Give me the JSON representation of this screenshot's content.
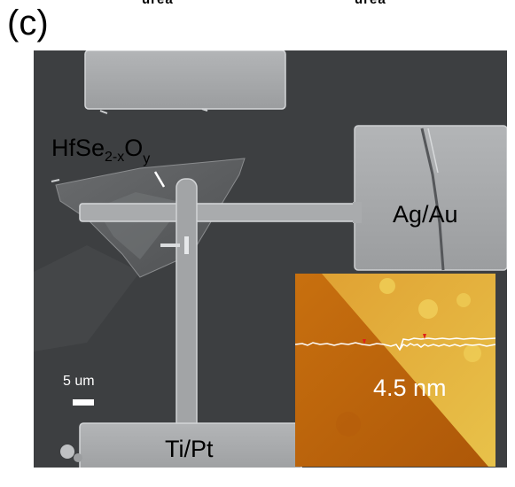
{
  "figure": {
    "panel_label": "(c)",
    "top_crop_left": "urea",
    "top_crop_right": "urea"
  },
  "labels": {
    "oxide_base": "HfSe",
    "oxide_sub": "2-x",
    "oxide_o": "O",
    "oxide_y": "y",
    "electrode_right": "Ag/Au",
    "electrode_bottom": "Ti/Pt",
    "scale_bar": "5 um"
  },
  "inset": {
    "thickness_label": "4.5 nm",
    "colors": {
      "afm_dark": "#b8600c",
      "afm_mid": "#d88d22",
      "afm_light": "#e8c24a",
      "profile_line": "#ffffff",
      "marker": "#e0201a"
    }
  },
  "colors": {
    "sem_background": "#3c3e40",
    "electrode": "#a3a5a7",
    "flake": "#5f6163"
  }
}
